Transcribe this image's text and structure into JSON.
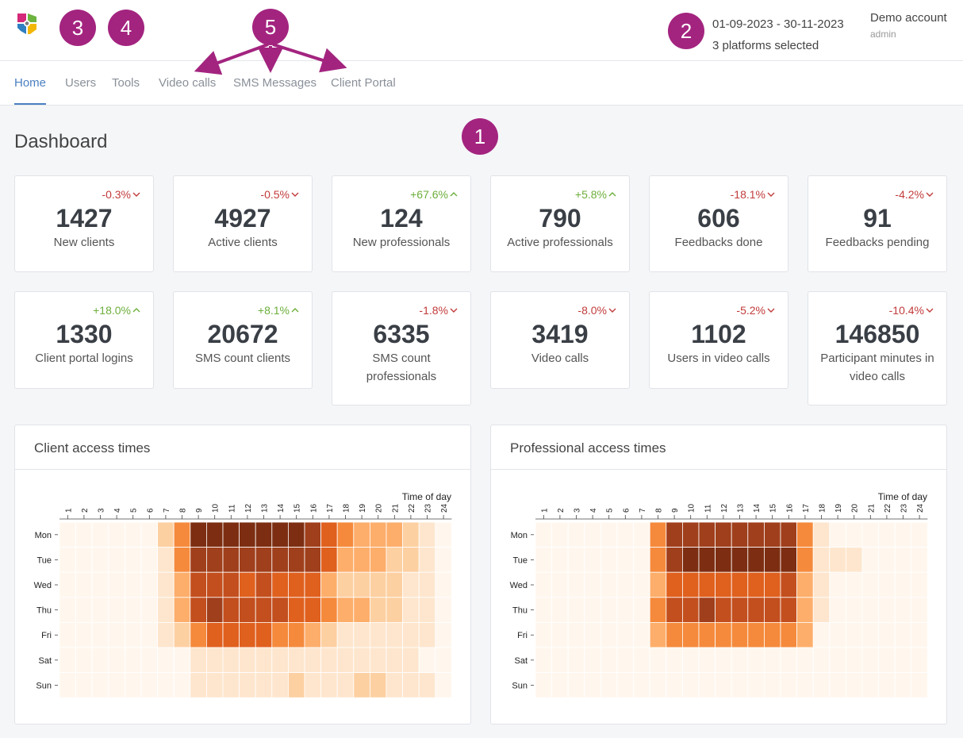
{
  "header": {
    "date_range": "01-09-2023 - 30-11-2023",
    "platforms": "3 platforms selected",
    "account_name": "Demo account",
    "account_role": "admin",
    "badge_color": "#a3247f"
  },
  "badges": [
    "1",
    "2",
    "3",
    "4",
    "5"
  ],
  "nav": {
    "items": [
      "Home",
      "Users",
      "Tools",
      "Video calls",
      "SMS Messages",
      "Client Portal"
    ],
    "active": "Home"
  },
  "page": {
    "title": "Dashboard"
  },
  "stats_row1": [
    {
      "value": "1427",
      "label": "New clients",
      "delta": "-0.3%",
      "dir": "down"
    },
    {
      "value": "4927",
      "label": "Active clients",
      "delta": "-0.5%",
      "dir": "down"
    },
    {
      "value": "124",
      "label": "New professionals",
      "delta": "+67.6%",
      "dir": "up"
    },
    {
      "value": "790",
      "label": "Active professionals",
      "delta": "+5.8%",
      "dir": "up"
    },
    {
      "value": "606",
      "label": "Feedbacks done",
      "delta": "-18.1%",
      "dir": "down"
    },
    {
      "value": "91",
      "label": "Feedbacks pending",
      "delta": "-4.2%",
      "dir": "down"
    }
  ],
  "stats_row2": [
    {
      "value": "1330",
      "label": "Client portal logins",
      "delta": "+18.0%",
      "dir": "up"
    },
    {
      "value": "20672",
      "label": "SMS count clients",
      "delta": "+8.1%",
      "dir": "up"
    },
    {
      "value": "6335",
      "label": "SMS count professionals",
      "delta": "-1.8%",
      "dir": "down"
    },
    {
      "value": "3419",
      "label": "Video calls",
      "delta": "-8.0%",
      "dir": "down"
    },
    {
      "value": "1102",
      "label": "Users in video calls",
      "delta": "-5.2%",
      "dir": "down"
    },
    {
      "value": "146850",
      "label": "Participant minutes in video calls",
      "delta": "-10.4%",
      "dir": "down"
    }
  ],
  "colors": {
    "negative": "#c23b3b",
    "positive": "#6cae3a",
    "accent": "#4a7fc1",
    "heat_scale": [
      "#fff7ee",
      "#fee6ce",
      "#fdd0a2",
      "#fdae6b",
      "#f58a3c",
      "#e0601e",
      "#c34f1e",
      "#a03f1c",
      "#7d2e12"
    ]
  },
  "chart_data": [
    {
      "type": "heatmap",
      "title": "Client access times",
      "xlabel": "Time of day",
      "x": [
        "1",
        "2",
        "3",
        "4",
        "5",
        "6",
        "7",
        "8",
        "9",
        "10",
        "11",
        "12",
        "13",
        "14",
        "15",
        "16",
        "17",
        "18",
        "19",
        "20",
        "21",
        "22",
        "23",
        "24"
      ],
      "y": [
        "Mon",
        "Tue",
        "Wed",
        "Thu",
        "Fri",
        "Sat",
        "Sun"
      ],
      "values": [
        [
          0,
          0,
          0,
          0,
          0,
          0,
          2,
          4,
          8,
          8,
          8,
          8,
          8,
          8,
          8,
          7,
          5,
          4,
          3,
          3,
          3,
          2,
          1,
          0
        ],
        [
          0,
          0,
          0,
          0,
          0,
          0,
          1,
          4,
          7,
          7,
          7,
          7,
          7,
          7,
          7,
          7,
          5,
          3,
          3,
          3,
          2,
          2,
          1,
          0
        ],
        [
          0,
          0,
          0,
          0,
          0,
          0,
          1,
          3,
          6,
          6,
          6,
          5,
          6,
          5,
          5,
          5,
          3,
          2,
          2,
          2,
          2,
          1,
          1,
          0
        ],
        [
          0,
          0,
          0,
          0,
          0,
          0,
          1,
          3,
          6,
          7,
          6,
          6,
          6,
          6,
          5,
          5,
          4,
          3,
          3,
          2,
          2,
          1,
          1,
          0
        ],
        [
          0,
          0,
          0,
          0,
          0,
          0,
          1,
          2,
          4,
          5,
          5,
          5,
          5,
          4,
          4,
          3,
          2,
          1,
          1,
          1,
          1,
          1,
          1,
          0
        ],
        [
          0,
          0,
          0,
          0,
          0,
          0,
          0,
          0,
          1,
          1,
          1,
          1,
          1,
          1,
          1,
          1,
          1,
          1,
          1,
          1,
          1,
          1,
          0,
          0
        ],
        [
          0,
          0,
          0,
          0,
          0,
          0,
          0,
          0,
          1,
          1,
          1,
          1,
          1,
          1,
          2,
          1,
          1,
          1,
          2,
          2,
          1,
          1,
          1,
          0
        ]
      ]
    },
    {
      "type": "heatmap",
      "title": "Professional access times",
      "xlabel": "Time of day",
      "x": [
        "1",
        "2",
        "3",
        "4",
        "5",
        "6",
        "7",
        "8",
        "9",
        "10",
        "11",
        "12",
        "13",
        "14",
        "15",
        "16",
        "17",
        "18",
        "19",
        "20",
        "21",
        "22",
        "23",
        "24"
      ],
      "y": [
        "Mon",
        "Tue",
        "Wed",
        "Thu",
        "Fri",
        "Sat",
        "Sun"
      ],
      "values": [
        [
          0,
          0,
          0,
          0,
          0,
          0,
          0,
          4,
          7,
          7,
          7,
          7,
          7,
          7,
          7,
          7,
          4,
          1,
          0,
          0,
          0,
          0,
          0,
          0
        ],
        [
          0,
          0,
          0,
          0,
          0,
          0,
          0,
          4,
          7,
          8,
          8,
          8,
          8,
          8,
          8,
          8,
          4,
          1,
          1,
          1,
          0,
          0,
          0,
          0
        ],
        [
          0,
          0,
          0,
          0,
          0,
          0,
          0,
          3,
          5,
          5,
          5,
          5,
          5,
          5,
          5,
          6,
          3,
          1,
          0,
          0,
          0,
          0,
          0,
          0
        ],
        [
          0,
          0,
          0,
          0,
          0,
          0,
          0,
          4,
          6,
          6,
          7,
          6,
          6,
          6,
          6,
          6,
          3,
          1,
          0,
          0,
          0,
          0,
          0,
          0
        ],
        [
          0,
          0,
          0,
          0,
          0,
          0,
          0,
          3,
          4,
          4,
          4,
          4,
          4,
          4,
          4,
          4,
          3,
          0,
          0,
          0,
          0,
          0,
          0,
          0
        ],
        [
          0,
          0,
          0,
          0,
          0,
          0,
          0,
          0,
          0,
          0,
          0,
          0,
          0,
          0,
          0,
          0,
          0,
          0,
          0,
          0,
          0,
          0,
          0,
          0
        ],
        [
          0,
          0,
          0,
          0,
          0,
          0,
          0,
          0,
          0,
          0,
          0,
          0,
          0,
          0,
          0,
          0,
          0,
          0,
          0,
          0,
          0,
          0,
          0,
          0
        ]
      ]
    }
  ]
}
